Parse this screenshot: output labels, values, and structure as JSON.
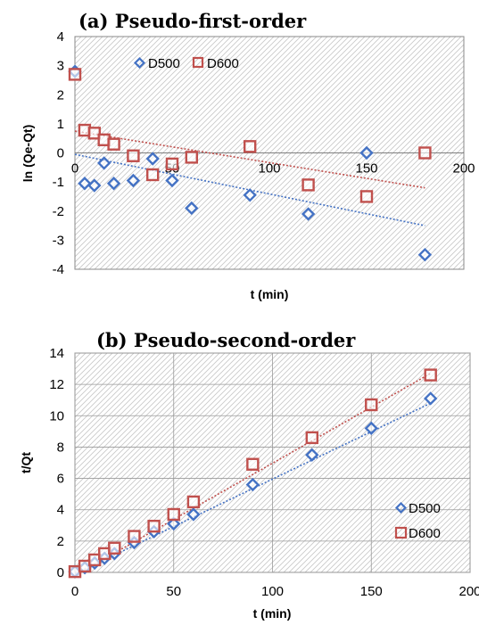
{
  "chart_data": [
    {
      "type": "scatter",
      "title": "(a) Pseudo-first-order",
      "xlabel": "t (min)",
      "ylabel": "ln (Qe-Qt)",
      "xlim": [
        0,
        200
      ],
      "ylim": [
        -4,
        4
      ],
      "xticks": [
        0,
        50,
        100,
        150,
        200
      ],
      "yticks": [
        -4,
        -3,
        -2,
        -1,
        0,
        1,
        2,
        3,
        4
      ],
      "x_tick_labels": [
        "0",
        "50",
        "100",
        "150",
        "200"
      ],
      "y_tick_labels": [
        "-4",
        "-3",
        "-2",
        "-1",
        "0",
        "1",
        "2",
        "3",
        "4"
      ],
      "legend_position": "top-left",
      "grid": false,
      "series": [
        {
          "name": "D500",
          "marker": "diamond",
          "color": "#4472C4",
          "x": [
            0,
            5,
            10,
            15,
            20,
            30,
            40,
            50,
            60,
            90,
            120,
            150,
            180
          ],
          "y": [
            2.8,
            -1.05,
            -1.12,
            -0.35,
            -1.05,
            -0.95,
            -0.2,
            -0.95,
            -1.9,
            -1.45,
            -2.1,
            0.0,
            -3.5
          ],
          "trendline": {
            "x": [
              0,
              180
            ],
            "y": [
              -0.05,
              -2.5
            ]
          }
        },
        {
          "name": "D600",
          "marker": "square",
          "color": "#C0504D",
          "x": [
            0,
            5,
            10,
            15,
            20,
            30,
            40,
            50,
            60,
            90,
            120,
            150,
            180
          ],
          "y": [
            2.7,
            0.78,
            0.68,
            0.45,
            0.3,
            -0.1,
            -0.75,
            -0.38,
            -0.15,
            0.22,
            -1.1,
            -1.5,
            0.0
          ],
          "trendline": {
            "x": [
              0,
              180
            ],
            "y": [
              0.75,
              -1.2
            ]
          }
        }
      ]
    },
    {
      "type": "scatter",
      "title": "(b) Pseudo-second-order",
      "xlabel": "t (min)",
      "ylabel": "t/Qt",
      "xlim": [
        0,
        200
      ],
      "ylim": [
        0,
        14
      ],
      "xticks": [
        0,
        50,
        100,
        150,
        200
      ],
      "yticks": [
        0,
        2,
        4,
        6,
        8,
        10,
        12,
        14
      ],
      "x_tick_labels": [
        "0",
        "50",
        "100",
        "150",
        "200"
      ],
      "y_tick_labels": [
        "0",
        "2",
        "4",
        "6",
        "8",
        "10",
        "12",
        "14"
      ],
      "legend_position": "bottom-right",
      "grid": true,
      "series": [
        {
          "name": "D500",
          "marker": "diamond",
          "color": "#4472C4",
          "x": [
            0,
            5,
            10,
            15,
            20,
            30,
            40,
            50,
            60,
            90,
            120,
            150,
            180
          ],
          "y": [
            0.05,
            0.3,
            0.6,
            0.9,
            1.2,
            1.9,
            2.6,
            3.1,
            3.7,
            5.6,
            7.5,
            9.2,
            11.1
          ],
          "trendline": {
            "x": [
              0,
              180
            ],
            "y": [
              -0.1,
              10.8
            ]
          }
        },
        {
          "name": "D600",
          "marker": "square",
          "color": "#C0504D",
          "x": [
            0,
            5,
            10,
            15,
            20,
            30,
            40,
            50,
            60,
            90,
            120,
            150,
            180
          ],
          "y": [
            0.05,
            0.4,
            0.8,
            1.2,
            1.55,
            2.3,
            2.95,
            3.7,
            4.5,
            6.9,
            8.6,
            10.7,
            12.6
          ],
          "trendline": {
            "x": [
              0,
              180
            ],
            "y": [
              -0.2,
              12.7
            ]
          }
        }
      ]
    }
  ]
}
